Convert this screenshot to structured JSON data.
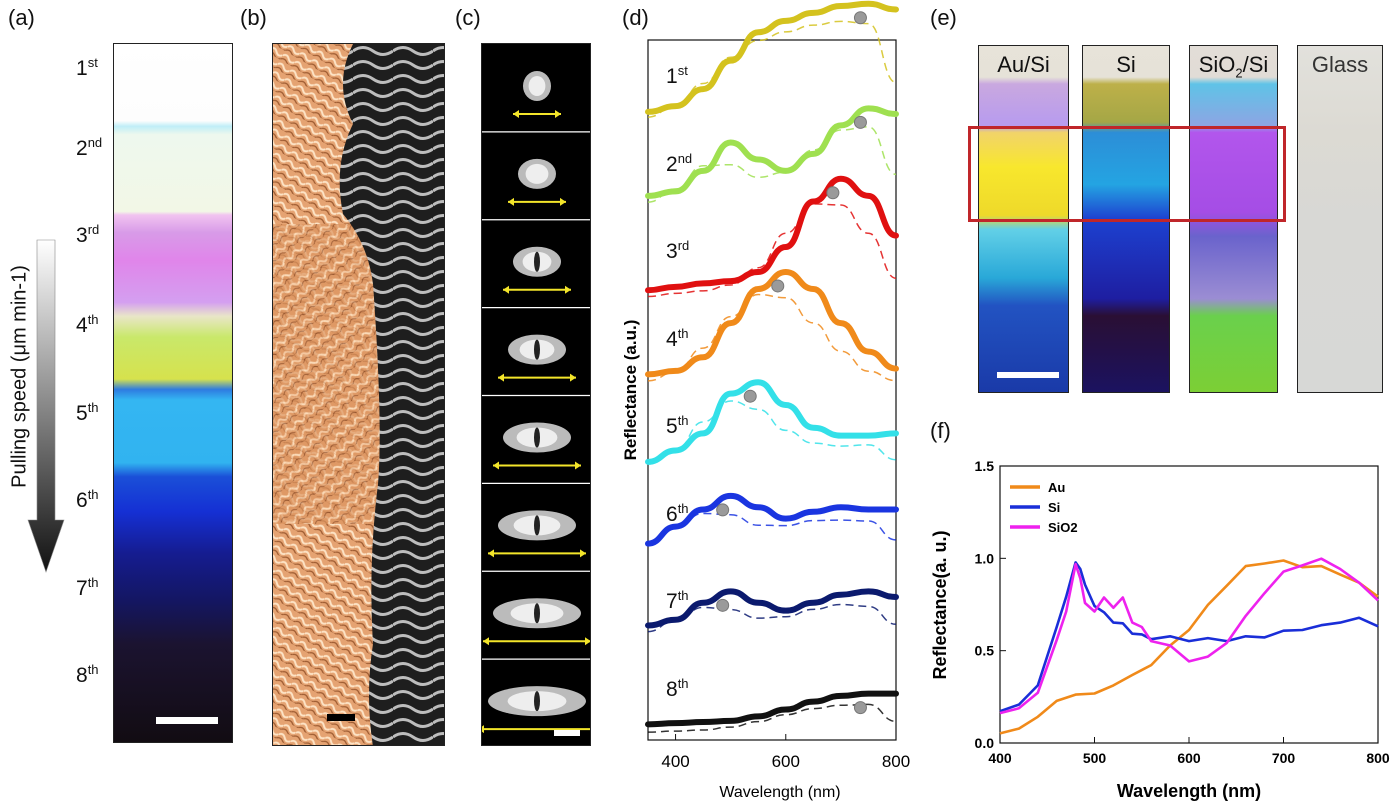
{
  "panels": {
    "a": "(a)",
    "b": "(b)",
    "c": "(c)",
    "d": "(d)",
    "e": "(e)",
    "f": "(f)"
  },
  "panel_a": {
    "axis_label": "Pulling speed (μm min-1)",
    "orders": [
      {
        "num": "1",
        "suf": "st"
      },
      {
        "num": "2",
        "suf": "nd"
      },
      {
        "num": "3",
        "suf": "rd"
      },
      {
        "num": "4",
        "suf": "th"
      },
      {
        "num": "5",
        "suf": "th"
      },
      {
        "num": "6",
        "suf": "th"
      },
      {
        "num": "7",
        "suf": "th"
      },
      {
        "num": "8",
        "suf": "th"
      }
    ]
  },
  "panel_e": {
    "substrates": [
      {
        "pre": "Au/Si",
        "sub": "",
        "post": ""
      },
      {
        "pre": "Si",
        "sub": "",
        "post": ""
      },
      {
        "pre": "SiO",
        "sub": "2",
        "post": "/Si"
      },
      {
        "pre": "Glass",
        "sub": "",
        "post": ""
      }
    ]
  },
  "chart_data": [
    {
      "id": "d",
      "type": "line",
      "xlabel": "Wavelength (nm)",
      "ylabel": "Reflectance (a.u.)",
      "xlim": [
        350,
        800
      ],
      "xticks": [
        "400",
        "600",
        "800"
      ],
      "series": [
        {
          "name": "1st",
          "color": "#d4c21e",
          "offset": 7,
          "x": [
            350,
            400,
            450,
            500,
            550,
            600,
            650,
            700,
            750,
            800
          ],
          "y": [
            0.05,
            0.1,
            0.25,
            0.5,
            0.75,
            0.85,
            0.92,
            0.98,
            1.0,
            0.95
          ]
        },
        {
          "name": "2nd",
          "color": "#9fe050",
          "offset": 6,
          "x": [
            350,
            400,
            450,
            500,
            550,
            600,
            650,
            700,
            750,
            800
          ],
          "y": [
            0.08,
            0.12,
            0.3,
            0.55,
            0.4,
            0.3,
            0.45,
            0.7,
            0.85,
            0.8
          ]
        },
        {
          "name": "3rd",
          "color": "#e01010",
          "offset": 5,
          "x": [
            350,
            400,
            450,
            500,
            550,
            600,
            650,
            700,
            750,
            800
          ],
          "y": [
            0.02,
            0.05,
            0.08,
            0.1,
            0.18,
            0.4,
            0.8,
            1.0,
            0.85,
            0.5
          ]
        },
        {
          "name": "4th",
          "color": "#f08a1a",
          "offset": 4,
          "x": [
            350,
            400,
            450,
            500,
            550,
            600,
            650,
            700,
            750,
            800
          ],
          "y": [
            0.05,
            0.08,
            0.2,
            0.5,
            0.8,
            0.95,
            0.8,
            0.5,
            0.25,
            0.1
          ]
        },
        {
          "name": "5th",
          "color": "#33e0e8",
          "offset": 3,
          "x": [
            350,
            400,
            450,
            500,
            550,
            600,
            650,
            700,
            750,
            800
          ],
          "y": [
            0.05,
            0.15,
            0.3,
            0.65,
            0.75,
            0.55,
            0.35,
            0.28,
            0.28,
            0.3
          ]
        },
        {
          "name": "6th",
          "color": "#1a35e0",
          "offset": 2,
          "x": [
            350,
            400,
            450,
            500,
            550,
            600,
            650,
            700,
            750,
            800
          ],
          "y": [
            0.1,
            0.25,
            0.4,
            0.52,
            0.42,
            0.32,
            0.38,
            0.42,
            0.4,
            0.4
          ]
        },
        {
          "name": "7th",
          "color": "#0b1a6e",
          "offset": 1,
          "x": [
            350,
            400,
            450,
            500,
            550,
            600,
            650,
            700,
            750,
            800
          ],
          "y": [
            0.15,
            0.2,
            0.35,
            0.45,
            0.35,
            0.28,
            0.35,
            0.42,
            0.45,
            0.4
          ]
        },
        {
          "name": "8th",
          "color": "#111111",
          "offset": 0,
          "x": [
            350,
            400,
            450,
            500,
            550,
            600,
            650,
            700,
            750,
            800
          ],
          "y": [
            0.05,
            0.06,
            0.07,
            0.08,
            0.12,
            0.18,
            0.25,
            0.3,
            0.32,
            0.32
          ]
        }
      ]
    },
    {
      "id": "f",
      "type": "line",
      "xlabel": "Wavelength (nm)",
      "ylabel": "Reflectance(a. u.)",
      "xlim": [
        400,
        800
      ],
      "ylim": [
        0.0,
        1.5
      ],
      "xticks": [
        "400",
        "500",
        "600",
        "700",
        "800"
      ],
      "yticks": [
        "0.0",
        "0.5",
        "1.0",
        "1.5"
      ],
      "legend": "top-left",
      "series": [
        {
          "name": "Au",
          "color": "#f08a1a",
          "x": [
            400,
            420,
            440,
            460,
            480,
            500,
            520,
            540,
            560,
            580,
            600,
            620,
            640,
            660,
            680,
            700,
            720,
            740,
            760,
            780,
            800
          ],
          "y": [
            0.06,
            0.07,
            0.15,
            0.22,
            0.27,
            0.26,
            0.32,
            0.36,
            0.43,
            0.52,
            0.62,
            0.74,
            0.86,
            0.95,
            0.98,
            0.98,
            0.96,
            0.95,
            0.92,
            0.86,
            0.8
          ]
        },
        {
          "name": "Si",
          "color": "#1a2ed8",
          "x": [
            400,
            420,
            440,
            460,
            470,
            480,
            485,
            490,
            500,
            510,
            520,
            530,
            540,
            550,
            560,
            580,
            600,
            620,
            640,
            660,
            680,
            700,
            720,
            740,
            760,
            780,
            800
          ],
          "y": [
            0.18,
            0.2,
            0.32,
            0.62,
            0.8,
            0.97,
            0.95,
            0.85,
            0.75,
            0.7,
            0.66,
            0.64,
            0.6,
            0.58,
            0.57,
            0.57,
            0.56,
            0.56,
            0.56,
            0.57,
            0.58,
            0.6,
            0.62,
            0.63,
            0.66,
            0.67,
            0.64
          ]
        },
        {
          "name": "SiO2",
          "color": "#ee22ee",
          "x": [
            400,
            420,
            440,
            460,
            470,
            480,
            485,
            490,
            500,
            510,
            520,
            530,
            540,
            550,
            560,
            580,
            600,
            620,
            640,
            660,
            680,
            700,
            720,
            740,
            760,
            780,
            800
          ],
          "y": [
            0.17,
            0.18,
            0.28,
            0.55,
            0.72,
            0.96,
            0.9,
            0.75,
            0.72,
            0.78,
            0.74,
            0.78,
            0.66,
            0.62,
            0.56,
            0.52,
            0.45,
            0.46,
            0.55,
            0.68,
            0.82,
            0.92,
            0.97,
            0.99,
            0.95,
            0.86,
            0.78
          ]
        }
      ]
    }
  ]
}
